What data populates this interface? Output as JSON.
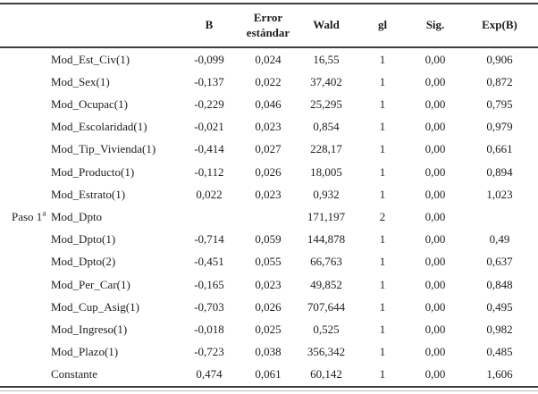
{
  "table": {
    "columns": [
      "B",
      "Error estándar",
      "Wald",
      "gl",
      "Sig.",
      "Exp(B)"
    ],
    "step_label": "Paso 1",
    "step_superscript": "a",
    "step_row_index": 7,
    "rows": [
      {
        "variable": "Mod_Est_Civ(1)",
        "b": "-0,099",
        "se": "0,024",
        "wald": "16,55",
        "gl": "1",
        "sig": "0,00",
        "exp_b": "0,906"
      },
      {
        "variable": "Mod_Sex(1)",
        "b": "-0,137",
        "se": "0,022",
        "wald": "37,402",
        "gl": "1",
        "sig": "0,00",
        "exp_b": "0,872"
      },
      {
        "variable": "Mod_Ocupac(1)",
        "b": "-0,229",
        "se": "0,046",
        "wald": "25,295",
        "gl": "1",
        "sig": "0,00",
        "exp_b": "0,795"
      },
      {
        "variable": "Mod_Escolaridad(1)",
        "b": "-0,021",
        "se": "0,023",
        "wald": "0,854",
        "gl": "1",
        "sig": "0,00",
        "exp_b": "0,979"
      },
      {
        "variable": "Mod_Tip_Vivienda(1)",
        "b": "-0,414",
        "se": "0,027",
        "wald": "228,17",
        "gl": "1",
        "sig": "0,00",
        "exp_b": "0,661"
      },
      {
        "variable": "Mod_Producto(1)",
        "b": "-0,112",
        "se": "0,026",
        "wald": "18,005",
        "gl": "1",
        "sig": "0,00",
        "exp_b": "0,894"
      },
      {
        "variable": "Mod_Estrato(1)",
        "b": "0,022",
        "se": "0,023",
        "wald": "0,932",
        "gl": "1",
        "sig": "0,00",
        "exp_b": "1,023"
      },
      {
        "variable": "Mod_Dpto",
        "b": "",
        "se": "",
        "wald": "171,197",
        "gl": "2",
        "sig": "0,00",
        "exp_b": ""
      },
      {
        "variable": "Mod_Dpto(1)",
        "b": "-0,714",
        "se": "0,059",
        "wald": "144,878",
        "gl": "1",
        "sig": "0,00",
        "exp_b": "0,49"
      },
      {
        "variable": "Mod_Dpto(2)",
        "b": "-0,451",
        "se": "0,055",
        "wald": "66,763",
        "gl": "1",
        "sig": "0,00",
        "exp_b": "0,637"
      },
      {
        "variable": "Mod_Per_Car(1)",
        "b": "-0,165",
        "se": "0,023",
        "wald": "49,852",
        "gl": "1",
        "sig": "0,00",
        "exp_b": "0,848"
      },
      {
        "variable": "Mod_Cup_Asig(1)",
        "b": "-0,703",
        "se": "0,026",
        "wald": "707,644",
        "gl": "1",
        "sig": "0,00",
        "exp_b": "0,495"
      },
      {
        "variable": "Mod_Ingreso(1)",
        "b": "-0,018",
        "se": "0,025",
        "wald": "0,525",
        "gl": "1",
        "sig": "0,00",
        "exp_b": "0,982"
      },
      {
        "variable": "Mod_Plazo(1)",
        "b": "-0,723",
        "se": "0,038",
        "wald": "356,342",
        "gl": "1",
        "sig": "0,00",
        "exp_b": "0,485"
      },
      {
        "variable": "Constante",
        "b": "0,474",
        "se": "0,061",
        "wald": "60,142",
        "gl": "1",
        "sig": "0,00",
        "exp_b": "1,606"
      }
    ]
  },
  "colors": {
    "rule_dark": "#3c3c3c",
    "rule_light": "#b8b8b8",
    "text": "#1d1d1d"
  }
}
